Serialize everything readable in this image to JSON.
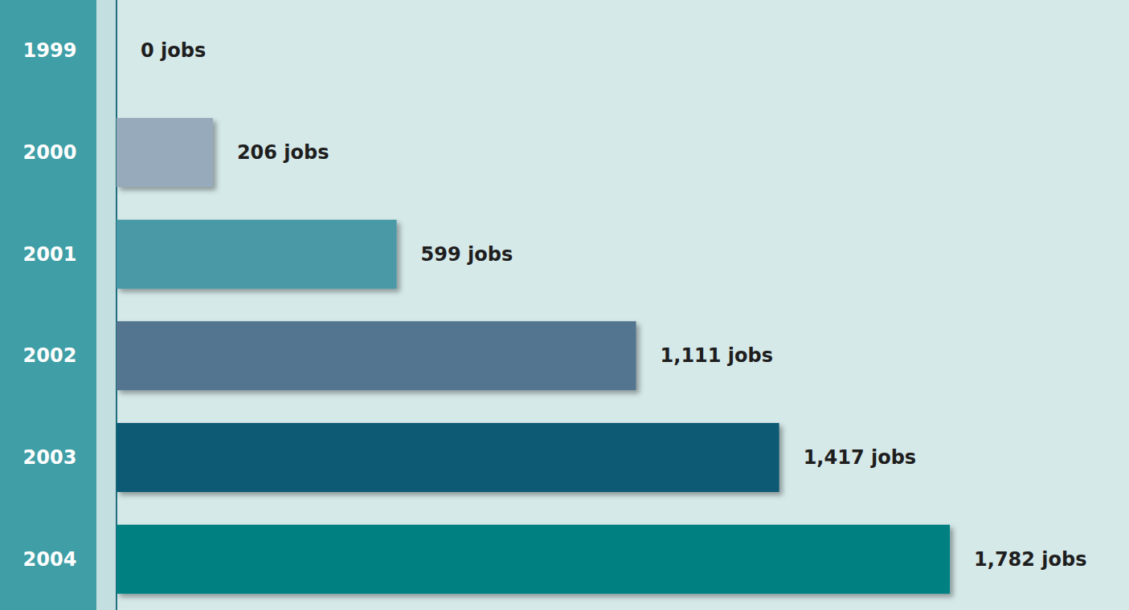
{
  "chart_data": {
    "type": "bar",
    "orientation": "horizontal",
    "categories": [
      "1999",
      "2000",
      "2001",
      "2002",
      "2003",
      "2004"
    ],
    "values": [
      0,
      206,
      599,
      1111,
      1417,
      1782
    ],
    "value_labels": [
      "0 jobs",
      "206 jobs",
      "599 jobs",
      "1,111 jobs",
      "1,417 jobs",
      "1,782 jobs"
    ],
    "colors": [
      "#1f6f80",
      "#97aabb",
      "#4a9aa6",
      "#52758f",
      "#0e5a74",
      "#008080"
    ],
    "xlim": [
      0,
      2165
    ],
    "data_labels": true,
    "tick_labels": "y",
    "grid": false
  }
}
